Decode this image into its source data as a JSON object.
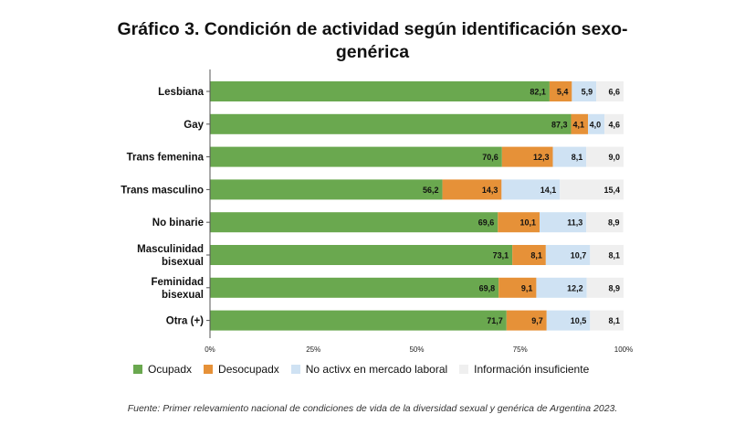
{
  "chart_data": {
    "type": "bar",
    "orientation": "horizontal",
    "stacked": true,
    "title_line1": "Gráfico 3. Condición de actividad según identificación sexo-",
    "title_line2": "genérica",
    "categories": [
      [
        "Lesbiana"
      ],
      [
        "Gay"
      ],
      [
        "Trans femenina"
      ],
      [
        "Trans masculino"
      ],
      [
        "No binarie"
      ],
      [
        "Masculinidad",
        "bisexual"
      ],
      [
        "Feminidad",
        "bisexual"
      ],
      [
        "Otra (+)"
      ]
    ],
    "series": [
      {
        "name": "Ocupadx",
        "color": "#6aa84f",
        "values": [
          82.1,
          87.3,
          70.6,
          56.2,
          69.6,
          73.1,
          69.8,
          71.7
        ],
        "labels": [
          "82,1",
          "87,3",
          "70,6",
          "56,2",
          "69,6",
          "73,1",
          "69,8",
          "71,7"
        ]
      },
      {
        "name": "Desocupadx",
        "color": "#e69138",
        "values": [
          5.4,
          4.1,
          12.3,
          14.3,
          10.1,
          8.1,
          9.1,
          9.7
        ],
        "labels": [
          "5,4",
          "4,1",
          "12,3",
          "14,3",
          "10,1",
          "8,1",
          "9,1",
          "9,7"
        ]
      },
      {
        "name": "No activx en mercado laboral",
        "color": "#cfe2f3",
        "values": [
          5.9,
          4.0,
          8.1,
          14.1,
          11.3,
          10.7,
          12.2,
          10.5
        ],
        "labels": [
          "5,9",
          "4,0",
          "8,1",
          "14,1",
          "11,3",
          "10,7",
          "12,2",
          "10,5"
        ]
      },
      {
        "name": "Información insuficiente",
        "color": "#efefef",
        "values": [
          6.6,
          4.6,
          9.0,
          15.4,
          8.9,
          8.1,
          8.9,
          8.1
        ],
        "labels": [
          "6,6",
          "4,6",
          "9,0",
          "15,4",
          "8,9",
          "8,1",
          "8,9",
          "8,1"
        ]
      }
    ],
    "x_ticks": [
      {
        "value": 0,
        "label": "0%"
      },
      {
        "value": 25,
        "label": "25%"
      },
      {
        "value": 50,
        "label": "50%"
      },
      {
        "value": 75,
        "label": "75%"
      },
      {
        "value": 100,
        "label": "100%"
      }
    ],
    "xlim": [
      0,
      100
    ],
    "grid": false,
    "legend_position": "bottom"
  },
  "source": "Fuente: Primer relevamiento nacional de condiciones de vida de la diversidad sexual y genérica de Argentina 2023."
}
